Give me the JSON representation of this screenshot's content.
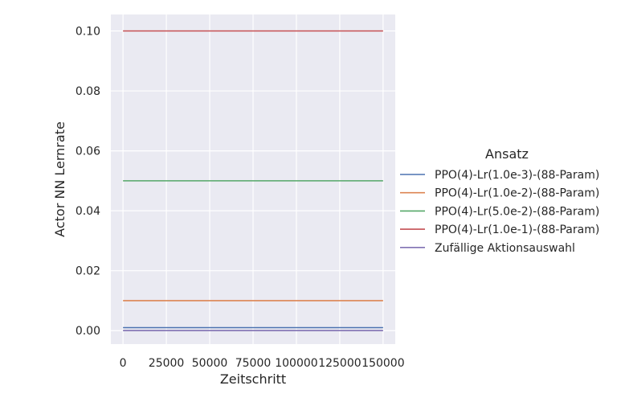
{
  "chart_data": {
    "type": "line",
    "xlabel": "Zeitschritt",
    "ylabel": "Actor NN Lernrate",
    "xlim": [
      -7000,
      157000
    ],
    "ylim": [
      -0.0045,
      0.1055
    ],
    "xticks": [
      0,
      25000,
      50000,
      75000,
      100000,
      125000,
      150000
    ],
    "xtick_labels": [
      "0",
      "25000",
      "50000",
      "75000",
      "100000",
      "125000",
      "150000"
    ],
    "yticks": [
      0.0,
      0.02,
      0.04,
      0.06,
      0.08,
      0.1
    ],
    "ytick_labels": [
      "0.00",
      "0.02",
      "0.04",
      "0.06",
      "0.08",
      "0.10"
    ],
    "grid": true,
    "background": "#eaeaf2",
    "legend": {
      "title": "Ansatz",
      "placement": "right"
    },
    "series": [
      {
        "name": "PPO(4)-Lr(1.0e-3)-(88-Param)",
        "color": "#4c72b0",
        "x": [
          0,
          150000
        ],
        "y": [
          0.001,
          0.001
        ]
      },
      {
        "name": "PPO(4)-Lr(1.0e-2)-(88-Param)",
        "color": "#dd8452",
        "x": [
          0,
          150000
        ],
        "y": [
          0.01,
          0.01
        ]
      },
      {
        "name": "PPO(4)-Lr(5.0e-2)-(88-Param)",
        "color": "#55a868",
        "x": [
          0,
          150000
        ],
        "y": [
          0.05,
          0.05
        ]
      },
      {
        "name": "PPO(4)-Lr(1.0e-1)-(88-Param)",
        "color": "#c44e52",
        "x": [
          0,
          150000
        ],
        "y": [
          0.1,
          0.1
        ]
      },
      {
        "name": "Zufällige Aktionsauswahl",
        "color": "#8172b3",
        "x": [
          0,
          150000
        ],
        "y": [
          0.0,
          0.0
        ]
      }
    ]
  }
}
